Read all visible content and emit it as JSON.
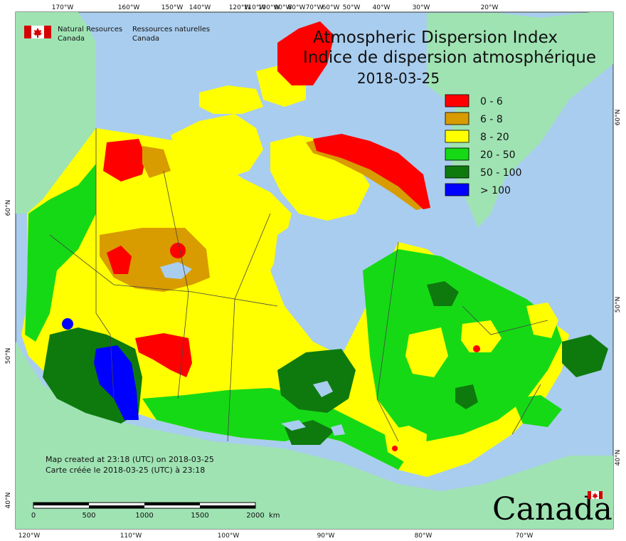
{
  "title": {
    "line1": "Atmospheric Dispersion Index",
    "line2": "Indice de dispersion atmosphérique",
    "date": "2018-03-25"
  },
  "agency": {
    "en_line1": "Natural Resources",
    "en_line2": "Canada",
    "fr_line1": "Ressources naturelles",
    "fr_line2": "Canada"
  },
  "legend": [
    {
      "label": "0 - 6",
      "color": "#ff0000"
    },
    {
      "label": "6 - 8",
      "color": "#d89b00"
    },
    {
      "label": "8 - 20",
      "color": "#ffff00"
    },
    {
      "label": "20 - 50",
      "color": "#16d916"
    },
    {
      "label": "50 - 100",
      "color": "#0e7a0e"
    },
    {
      "label": "> 100",
      "color": "#0000ff"
    }
  ],
  "ticks": {
    "top": [
      "170°W",
      "160°W",
      "150°W",
      "140°W",
      "120°W",
      "100°W",
      "80°W",
      "60°W",
      "50°W",
      "40°W",
      "30°W",
      "20°W"
    ],
    "top_extra": [
      "110°W",
      "90°W",
      "70°W"
    ],
    "bottom": [
      "120°W",
      "110°W",
      "100°W",
      "90°W",
      "80°W",
      "70°W"
    ],
    "left": [
      "60°N",
      "50°N",
      "40°N"
    ],
    "right": [
      "60°N",
      "50°N",
      "40°N"
    ]
  },
  "footer": {
    "created_en": "Map created at 23:18 (UTC) on 2018-03-25",
    "created_fr": "Carte créée le 2018-03-25 (UTC) à 23:18"
  },
  "scale_bar": {
    "labels": [
      "0",
      "500",
      "1000",
      "1500",
      "2000"
    ],
    "unit": "km"
  },
  "wordmark": "Canada",
  "colors": {
    "ocean": "#a9cdee",
    "foreign_land": "#9fe3b3",
    "water_bodies": "#a9cdee"
  }
}
